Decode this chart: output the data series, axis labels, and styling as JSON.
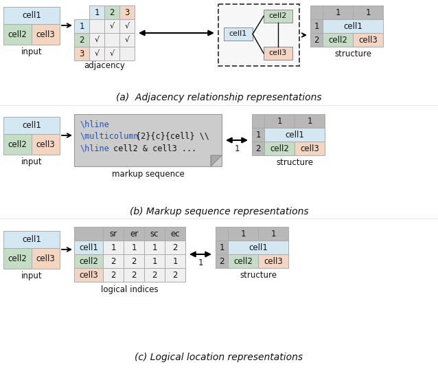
{
  "bg": "#ffffff",
  "cell1_color": "#d4e8f4",
  "cell2_color": "#c5dcc5",
  "cell3_color": "#f4d5c2",
  "header_color": "#b8b8b8",
  "panel_a_label": "(a)  Adjacency relationship representations",
  "panel_b_label": "(b) Markup sequence representations",
  "panel_c_label": "(c) Logical location representations",
  "input_label": "input",
  "adjacency_label": "adjacency",
  "structure_label": "structure",
  "markup_seq_label": "markup sequence",
  "logical_indices_label": "logical indices",
  "fig_w": 6.38,
  "fig_h": 5.66,
  "dpi": 100
}
